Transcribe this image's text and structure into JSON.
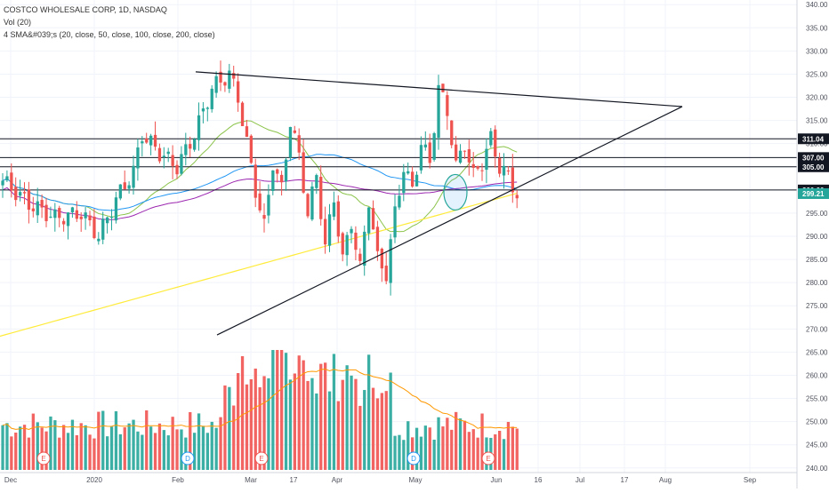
{
  "legend": {
    "symbol_line": "COSTCO WHOLESALE CORP, 1D, NASDAQ",
    "volume_line": "Vol (20)",
    "sma_line": "4 SMA&#039;s (20, close, 50, close, 100, close, 200, close)"
  },
  "chart_data": {
    "type": "candlestick",
    "title": "COSTCO WHOLESALE CORP, 1D, NASDAQ",
    "x_ticks": [
      "Dec",
      "2020",
      "Feb",
      "Mar",
      "17",
      "Apr",
      "May",
      "Jun",
      "16",
      "Jul",
      "17",
      "Aug",
      "Sep"
    ],
    "y_ticks": [
      "340.00",
      "335.00",
      "330.00",
      "325.00",
      "320.00",
      "315.00",
      "310.00",
      "305.00",
      "300.00",
      "295.00",
      "290.00",
      "285.00",
      "280.00",
      "275.00",
      "270.00",
      "265.00",
      "260.00",
      "255.00",
      "250.00",
      "245.00",
      "240.00"
    ],
    "ylim": [
      239,
      341
    ],
    "price_labels": [
      {
        "label": "311.04",
        "value": 311.04,
        "style": "dark"
      },
      {
        "label": "307.00",
        "value": 307.0,
        "style": "dark"
      },
      {
        "label": "305.00",
        "value": 305.0,
        "style": "dark"
      },
      {
        "label": "300.00",
        "value": 300.0,
        "style": "dark"
      },
      {
        "label": "299.21",
        "value": 299.21,
        "style": "green"
      }
    ],
    "horizontal_lines": [
      311.04,
      307.0,
      305.0,
      300.0
    ],
    "trendlines": [
      {
        "name": "upper-trendline",
        "start": [
          43,
          326
        ],
        "end": [
          160,
          318
        ]
      },
      {
        "name": "lower-trendline",
        "start": [
          48,
          269
        ],
        "end": [
          160,
          318
        ]
      }
    ],
    "event_markers": [
      {
        "label": "E",
        "index": 10,
        "color": "#ef5350"
      },
      {
        "label": "D",
        "index": 43,
        "color": "#2196f3"
      },
      {
        "label": "E",
        "index": 60,
        "color": "#ef5350"
      },
      {
        "label": "D",
        "index": 95,
        "color": "#2196f3"
      },
      {
        "label": "E",
        "index": 113,
        "color": "#ef5350"
      }
    ],
    "colors": {
      "up": "#26a69a",
      "down": "#ef5350",
      "sma20": "#8bc34a",
      "sma50": "#2196f3",
      "sma100": "#9c27b0",
      "sma200": "#ffeb3b",
      "vol_ma": "#ff9800"
    }
  }
}
